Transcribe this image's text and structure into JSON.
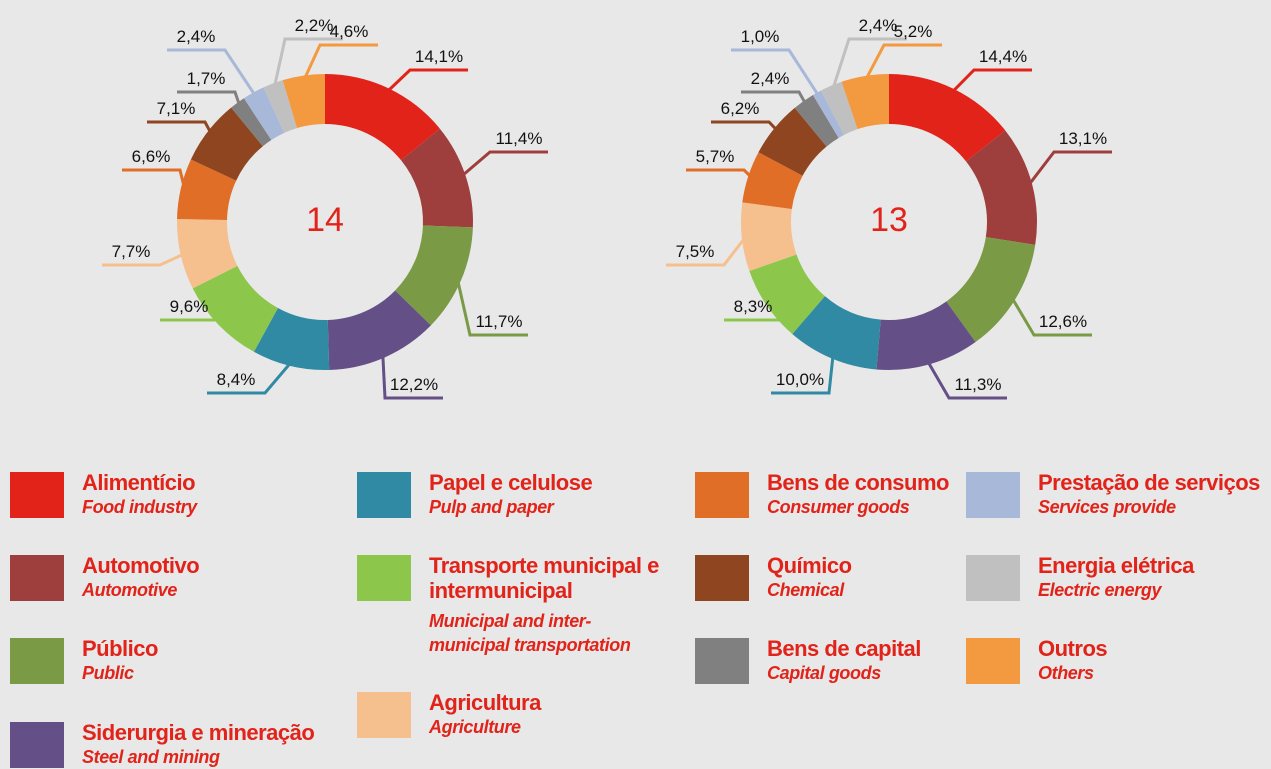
{
  "chart_data": [
    {
      "type": "pie",
      "title": "14",
      "values": [
        14.1,
        11.4,
        11.7,
        12.2,
        8.4,
        9.6,
        7.7,
        6.6,
        7.1,
        1.7,
        2.4,
        2.2,
        4.6
      ],
      "value_labels": [
        "14,1%",
        "11,4%",
        "11,7%",
        "12,2%",
        "8,4%",
        "9,6%",
        "7,7%",
        "6,6%",
        "7,1%",
        "1,7%",
        "2,4%",
        "2,2%",
        "4,6%"
      ]
    },
    {
      "type": "pie",
      "title": "13",
      "values": [
        14.4,
        13.1,
        12.6,
        11.3,
        10.0,
        8.3,
        7.5,
        5.7,
        6.2,
        2.4,
        1.0,
        2.4,
        5.2
      ],
      "value_labels": [
        "14,4%",
        "13,1%",
        "12,6%",
        "11,3%",
        "10,0%",
        "8,3%",
        "7,5%",
        "5,7%",
        "6,2%",
        "2,4%",
        "1,0%",
        "2,4%",
        "5,2%"
      ]
    }
  ],
  "legend": [
    {
      "name": "Alimentício",
      "name_en": "Food industry",
      "color": "#e2231a"
    },
    {
      "name": "Automotivo",
      "name_en": "Automotive",
      "color": "#9e3f3e"
    },
    {
      "name": "Público",
      "name_en": "Public",
      "color": "#7a9a46"
    },
    {
      "name": "Siderurgia e mineração",
      "name_en": "Steel and mining",
      "color": "#654f87"
    },
    {
      "name": "Papel e celulose",
      "name_en": "Pulp and paper",
      "color": "#318aa3"
    },
    {
      "name": "Transporte municipal e intermunicipal",
      "name_en": "Municipal and inter-municipal transportation",
      "color": "#8cc74c"
    },
    {
      "name": "Agricultura",
      "name_en": "Agriculture",
      "color": "#f6c08e"
    },
    {
      "name": "Bens de consumo",
      "name_en": "Consumer goods",
      "color": "#e06e27"
    },
    {
      "name": "Químico",
      "name_en": "Chemical",
      "color": "#8f4520"
    },
    {
      "name": "Bens de capital",
      "name_en": "Capital goods",
      "color": "#808080"
    },
    {
      "name": "Prestação de serviços",
      "name_en": "Services provide",
      "color": "#a8b8d8"
    },
    {
      "name": "Energia elétrica",
      "name_en": "Electric energy",
      "color": "#c0c0c0"
    },
    {
      "name": "Outros",
      "name_en": "Others",
      "color": "#f39a40"
    }
  ]
}
